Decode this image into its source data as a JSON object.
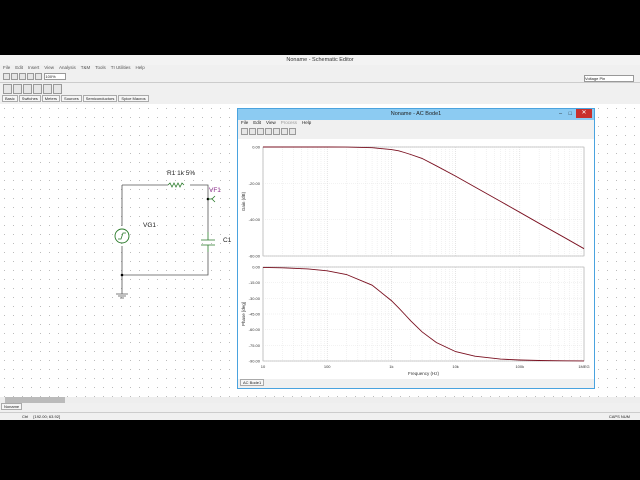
{
  "main": {
    "title": "Noname - Schematic Editor",
    "menu": [
      "File",
      "Edit",
      "Insert",
      "View",
      "Analysis",
      "T&M",
      "Tools",
      "TI Utilities",
      "Help"
    ],
    "zoom": "100%",
    "component_select": "Voltage Pin",
    "tabs": [
      "Basic",
      "Switches",
      "Meters",
      "Sources",
      "Semiconductors",
      "Spice Macros"
    ],
    "sheet_tab": "Noname",
    "coords": "[192.00; 63.92]",
    "status_left": "Ctrl",
    "status_right": "CAPS NUM"
  },
  "schematic": {
    "r1": "R1 1k 5%",
    "vf1": "VF1",
    "vg1": "VG1",
    "c1": "C1"
  },
  "bode": {
    "title": "Noname - AC Bode1",
    "menu": [
      "File",
      "Edit",
      "View",
      "Process",
      "Help"
    ],
    "tab": "AC Bode1"
  },
  "chart_data": [
    {
      "type": "line",
      "ylabel": "Gain (dB)",
      "xscale": "log",
      "xlim": [
        10,
        1000000
      ],
      "ylim": [
        -60,
        0
      ],
      "yticks": [
        "0.00",
        "-20.00",
        "-40.00",
        "-60.00"
      ],
      "grid": true,
      "color": "#7a1020",
      "x": [
        10,
        20,
        50,
        100,
        200,
        500,
        1000,
        1300,
        1592,
        2000,
        3000,
        5000,
        10000,
        20000,
        50000,
        100000,
        200000,
        500000,
        1000000
      ],
      "y": [
        0,
        0,
        0,
        -0.02,
        -0.07,
        -0.41,
        -1.44,
        -2.1,
        -3.01,
        -4.14,
        -6.3,
        -10.35,
        -16.04,
        -22.0,
        -29.95,
        -35.96,
        -41.98,
        -49.94,
        -55.96
      ]
    },
    {
      "type": "line",
      "ylabel": "Phase [deg]",
      "xlabel": "Frequency (Hz)",
      "xscale": "log",
      "xlim": [
        10,
        1000000
      ],
      "ylim": [
        -90,
        0
      ],
      "yticks": [
        "0.00",
        "-15.00",
        "-30.00",
        "-45.00",
        "-60.00",
        "-75.00",
        "-90.00"
      ],
      "xticks": [
        "10",
        "100",
        "1k",
        "10k",
        "100k",
        "1MEG"
      ],
      "grid": true,
      "color": "#7a1020",
      "x": [
        10,
        20,
        50,
        100,
        200,
        500,
        1000,
        1300,
        1592,
        2000,
        3000,
        5000,
        10000,
        20000,
        50000,
        100000,
        200000,
        500000,
        1000000
      ],
      "y": [
        -0.36,
        -0.72,
        -1.8,
        -3.6,
        -7.17,
        -17.44,
        -32.14,
        -39.2,
        -45,
        -51.5,
        -62.0,
        -72.3,
        -81.0,
        -85.45,
        -88.18,
        -89.09,
        -89.54,
        -89.82,
        -89.91
      ]
    }
  ]
}
